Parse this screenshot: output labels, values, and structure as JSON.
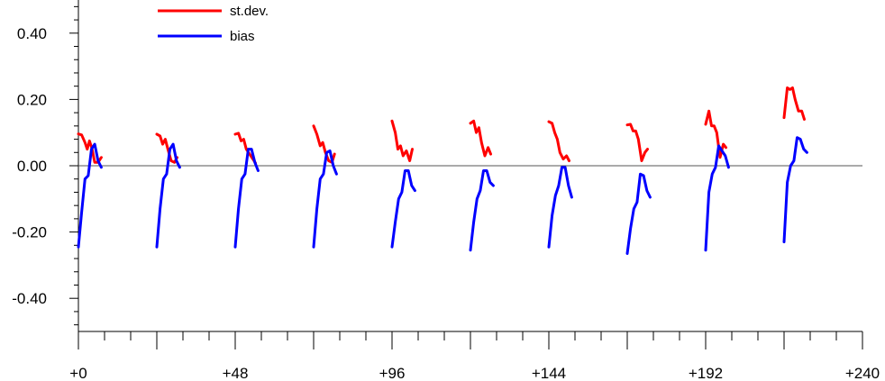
{
  "chart_data": {
    "type": "line",
    "title": "",
    "xlabel": "",
    "ylabel": "",
    "xlim": [
      0,
      240
    ],
    "ylim": [
      -0.5,
      0.5
    ],
    "x_ticks": [
      {
        "value": 0,
        "label": "+0"
      },
      {
        "value": 48,
        "label": "+48"
      },
      {
        "value": 96,
        "label": "+96"
      },
      {
        "value": 144,
        "label": "+144"
      },
      {
        "value": 192,
        "label": "+192"
      },
      {
        "value": 240,
        "label": "+240"
      }
    ],
    "y_ticks": [
      {
        "value": 0.4,
        "label": "0.40"
      },
      {
        "value": 0.2,
        "label": "0.20"
      },
      {
        "value": 0.0,
        "label": "0.00"
      },
      {
        "value": -0.2,
        "label": "-0.20"
      },
      {
        "value": -0.4,
        "label": "-0.40"
      }
    ],
    "legend": {
      "position": "top-left",
      "entries": [
        "st.dev.",
        "bias"
      ]
    },
    "grid": false,
    "reference_line_y": 0,
    "segments_x_offsets": [
      0,
      24,
      48,
      72,
      96,
      120,
      144,
      168,
      192,
      216
    ],
    "series": [
      {
        "name": "st.dev.",
        "color": "#ff0000",
        "segments": [
          [
            [
              0,
              0.096
            ],
            [
              1,
              0.093
            ],
            [
              2,
              0.07
            ],
            [
              2.7,
              0.05
            ],
            [
              3.4,
              0.075
            ],
            [
              4.2,
              0.05
            ],
            [
              5,
              0.01
            ],
            [
              6,
              0.01
            ],
            [
              7,
              0.025
            ]
          ],
          [
            [
              24,
              0.095
            ],
            [
              25,
              0.09
            ],
            [
              25.8,
              0.065
            ],
            [
              26.6,
              0.08
            ],
            [
              27.4,
              0.05
            ],
            [
              28.4,
              0.015
            ],
            [
              29.4,
              0.01
            ],
            [
              30.2,
              0.025
            ]
          ],
          [
            [
              48,
              0.095
            ],
            [
              49,
              0.098
            ],
            [
              49.8,
              0.075
            ],
            [
              50.6,
              0.08
            ],
            [
              51.4,
              0.05
            ],
            [
              52.4,
              0.035
            ],
            [
              53.4,
              0.02
            ],
            [
              54.2,
              0.008
            ]
          ],
          [
            [
              72,
              0.12
            ],
            [
              73,
              0.095
            ],
            [
              74,
              0.06
            ],
            [
              74.8,
              0.07
            ],
            [
              75.6,
              0.04
            ],
            [
              76.6,
              0.015
            ],
            [
              77.6,
              0.01
            ],
            [
              78.4,
              0.035
            ]
          ],
          [
            [
              96,
              0.135
            ],
            [
              97,
              0.1
            ],
            [
              97.8,
              0.05
            ],
            [
              98.6,
              0.06
            ],
            [
              99.4,
              0.03
            ],
            [
              100.4,
              0.045
            ],
            [
              101.4,
              0.015
            ],
            [
              102.2,
              0.05
            ]
          ],
          [
            [
              120,
              0.128
            ],
            [
              121,
              0.135
            ],
            [
              121.8,
              0.1
            ],
            [
              122.6,
              0.115
            ],
            [
              123.4,
              0.07
            ],
            [
              124.4,
              0.03
            ],
            [
              125.4,
              0.055
            ],
            [
              126.2,
              0.035
            ]
          ],
          [
            [
              144,
              0.133
            ],
            [
              145,
              0.128
            ],
            [
              145.8,
              0.1
            ],
            [
              146.6,
              0.08
            ],
            [
              147.4,
              0.04
            ],
            [
              148.4,
              0.02
            ],
            [
              149.4,
              0.03
            ],
            [
              150.2,
              0.015
            ]
          ],
          [
            [
              168,
              0.123
            ],
            [
              169,
              0.125
            ],
            [
              169.8,
              0.105
            ],
            [
              170.6,
              0.105
            ],
            [
              171.4,
              0.08
            ],
            [
              172.4,
              0.015
            ],
            [
              173.4,
              0.04
            ],
            [
              174.2,
              0.05
            ]
          ],
          [
            [
              192,
              0.125
            ],
            [
              193,
              0.165
            ],
            [
              193.8,
              0.12
            ],
            [
              194.6,
              0.12
            ],
            [
              195.4,
              0.1
            ],
            [
              196.4,
              0.025
            ],
            [
              197.4,
              0.065
            ],
            [
              198.2,
              0.055
            ]
          ],
          [
            [
              216,
              0.145
            ],
            [
              217,
              0.235
            ],
            [
              217.8,
              0.23
            ],
            [
              218.6,
              0.235
            ],
            [
              219.4,
              0.2
            ],
            [
              220.4,
              0.165
            ],
            [
              221.4,
              0.165
            ],
            [
              222.2,
              0.14
            ]
          ]
        ]
      },
      {
        "name": "bias",
        "color": "#0000ff",
        "segments": [
          [
            [
              0,
              -0.245
            ],
            [
              1,
              -0.14
            ],
            [
              2,
              -0.04
            ],
            [
              3,
              -0.03
            ],
            [
              4,
              0.05
            ],
            [
              5,
              0.065
            ],
            [
              6,
              0.015
            ],
            [
              7,
              -0.005
            ]
          ],
          [
            [
              24,
              -0.245
            ],
            [
              25,
              -0.13
            ],
            [
              26,
              -0.04
            ],
            [
              27,
              -0.025
            ],
            [
              28,
              0.05
            ],
            [
              29,
              0.065
            ],
            [
              30,
              0.015
            ],
            [
              31,
              -0.005
            ]
          ],
          [
            [
              48,
              -0.245
            ],
            [
              49,
              -0.13
            ],
            [
              50,
              -0.04
            ],
            [
              51,
              -0.025
            ],
            [
              52,
              0.05
            ],
            [
              53,
              0.05
            ],
            [
              54,
              0.01
            ],
            [
              55,
              -0.015
            ]
          ],
          [
            [
              72,
              -0.245
            ],
            [
              73,
              -0.13
            ],
            [
              74,
              -0.04
            ],
            [
              75,
              -0.025
            ],
            [
              76,
              0.04
            ],
            [
              77,
              0.045
            ],
            [
              78,
              0.0
            ],
            [
              79,
              -0.025
            ]
          ],
          [
            [
              96,
              -0.245
            ],
            [
              97,
              -0.17
            ],
            [
              98,
              -0.1
            ],
            [
              99,
              -0.08
            ],
            [
              100,
              -0.015
            ],
            [
              101,
              -0.015
            ],
            [
              102,
              -0.06
            ],
            [
              103,
              -0.075
            ]
          ],
          [
            [
              120,
              -0.255
            ],
            [
              121,
              -0.17
            ],
            [
              122,
              -0.1
            ],
            [
              123,
              -0.075
            ],
            [
              124,
              -0.015
            ],
            [
              125,
              -0.015
            ],
            [
              126,
              -0.05
            ],
            [
              127,
              -0.06
            ]
          ],
          [
            [
              144,
              -0.245
            ],
            [
              145,
              -0.15
            ],
            [
              146,
              -0.09
            ],
            [
              147,
              -0.06
            ],
            [
              148,
              -0.005
            ],
            [
              149,
              -0.005
            ],
            [
              150,
              -0.06
            ],
            [
              151,
              -0.095
            ]
          ],
          [
            [
              168,
              -0.265
            ],
            [
              169,
              -0.19
            ],
            [
              170,
              -0.13
            ],
            [
              171,
              -0.11
            ],
            [
              172,
              -0.025
            ],
            [
              173,
              -0.03
            ],
            [
              174,
              -0.075
            ],
            [
              175,
              -0.095
            ]
          ],
          [
            [
              192,
              -0.255
            ],
            [
              193,
              -0.08
            ],
            [
              194,
              -0.025
            ],
            [
              195,
              -0.005
            ],
            [
              196,
              0.06
            ],
            [
              197,
              0.045
            ],
            [
              198,
              0.03
            ],
            [
              199,
              -0.005
            ]
          ],
          [
            [
              216,
              -0.23
            ],
            [
              217,
              -0.05
            ],
            [
              218,
              0.0
            ],
            [
              219,
              0.015
            ],
            [
              220,
              0.085
            ],
            [
              221,
              0.08
            ],
            [
              222,
              0.05
            ],
            [
              223,
              0.04
            ]
          ]
        ]
      }
    ]
  }
}
